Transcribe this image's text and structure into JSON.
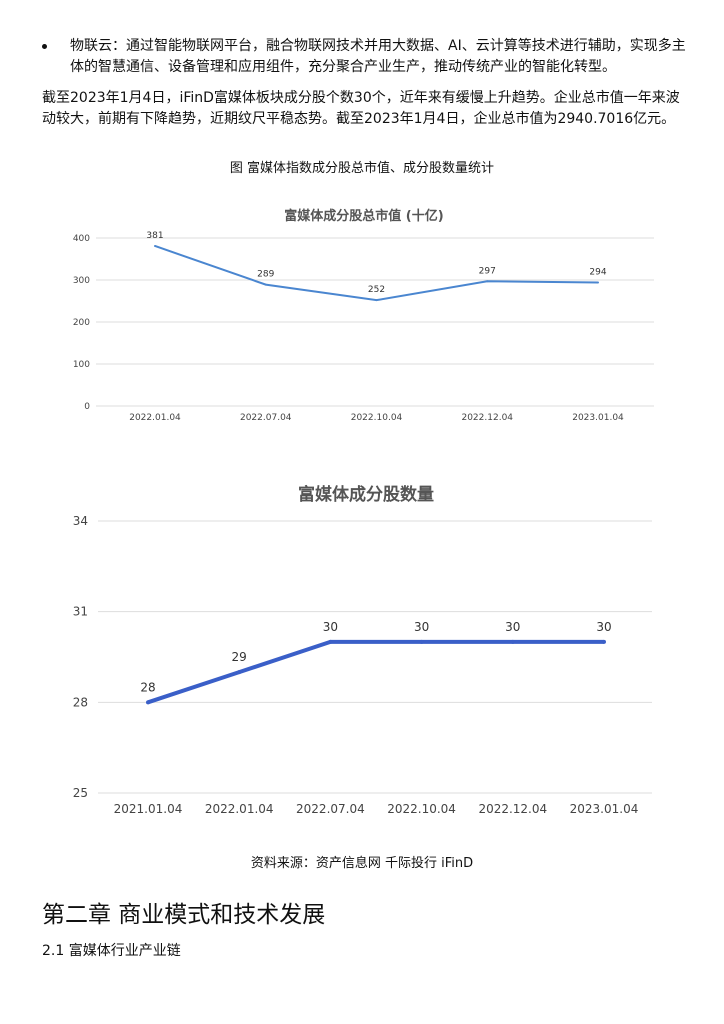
{
  "bullet": {
    "text": "物联云：通过智能物联网平台，融合物联网技术并用大数据、AI、云计算等技术进行辅助，实现多主体的智慧通信、设备管理和应用组件，充分聚合产业生产，推动传统产业的智能化转型。"
  },
  "paragraph": "截至2023年1月4日，iFinD富媒体板块成分股个数30个，近年来有缓慢上升趋势。企业总市值一年来波动较大，前期有下降趋势，近期纹尺平稳态势。截至2023年1月4日，企业总市值为2940.7016亿元。",
  "figure_caption": "图 富媒体指数成分股总市值、成分股数量统计",
  "source": "资料来源：资产信息网 千际投行 iFinD",
  "chapter_title": "第二章 商业模式和技术发展",
  "section_title": "2.1 富媒体行业产业链",
  "colors": {
    "chart1_line": "#4a86d0",
    "chart2_line": "#3a5fc8",
    "grid": "#dddddd"
  },
  "chart_data": [
    {
      "type": "line",
      "title": "富媒体成分股总市值 (十亿)",
      "categories": [
        "2022.01.04",
        "2022.07.04",
        "2022.10.04",
        "2022.12.04",
        "2023.01.04"
      ],
      "values": [
        381,
        289,
        252,
        297,
        294
      ],
      "data_labels": [
        "381",
        "289",
        "252",
        "297",
        "294"
      ],
      "yticks": [
        "0",
        "100",
        "200",
        "300",
        "400"
      ],
      "ylim": [
        0,
        400
      ],
      "grid": true
    },
    {
      "type": "line",
      "title": "富媒体成分股数量",
      "categories": [
        "2021.01.04",
        "2022.01.04",
        "2022.07.04",
        "2022.10.04",
        "2022.12.04",
        "2023.01.04"
      ],
      "values": [
        28,
        29,
        30,
        30,
        30,
        30
      ],
      "data_labels": [
        "28",
        "29",
        "30",
        "30",
        "30",
        "30"
      ],
      "yticks": [
        "25",
        "28",
        "31",
        "34"
      ],
      "ylim": [
        25,
        34
      ],
      "grid": true
    }
  ]
}
